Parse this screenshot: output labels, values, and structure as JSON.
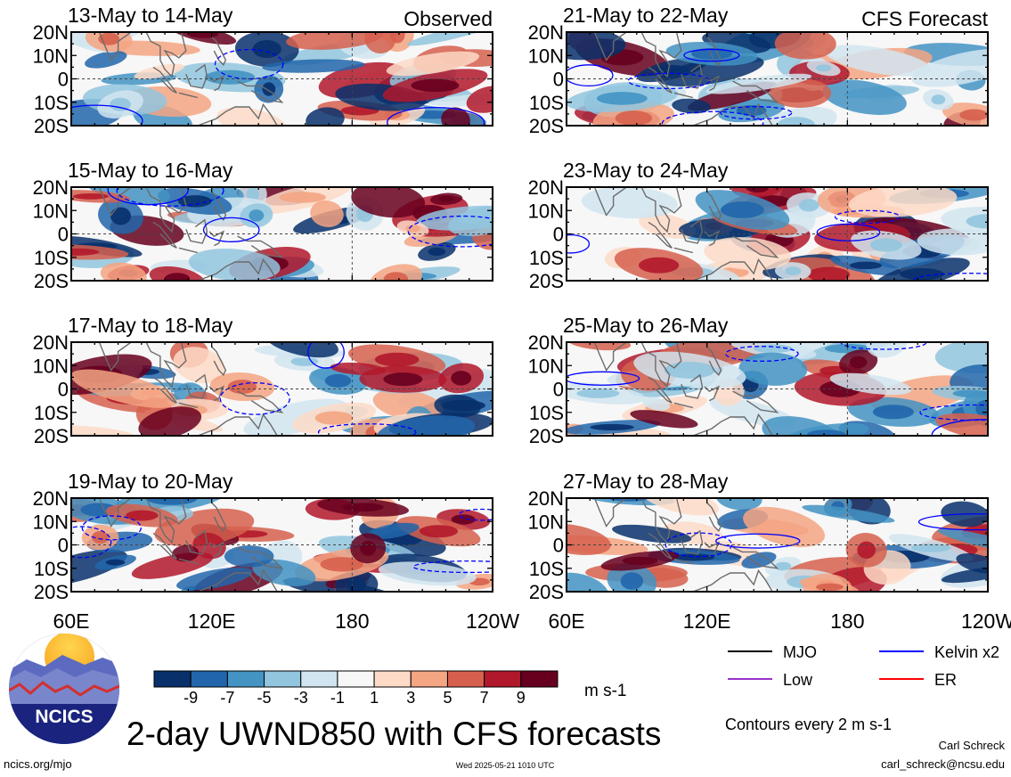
{
  "chart_data": {
    "type": "heatmap",
    "title": "2-day UWND850 with CFS forecasts",
    "units": "m s-1",
    "contour_note": "Contours every 2 m s-1",
    "x_ticks": [
      "60E",
      "120E",
      "180",
      "120W"
    ],
    "y_ticks": [
      "20N",
      "10N",
      "0",
      "10S",
      "20S"
    ],
    "xlim_deg_east": [
      60,
      240
    ],
    "ylim_deg_lat": [
      -20,
      20
    ],
    "colorbar": {
      "labels": [
        "-9",
        "-7",
        "-5",
        "-3",
        "-1",
        "1",
        "3",
        "5",
        "7",
        "9"
      ],
      "colors": [
        "#08306b",
        "#2166ac",
        "#4393c3",
        "#92c5de",
        "#d1e5f0",
        "#f7f7f7",
        "#fddbc7",
        "#f4a582",
        "#d6604d",
        "#b2182b",
        "#67001f"
      ]
    },
    "panels": [
      {
        "label": "13-May to 14-May",
        "tag": "Observed",
        "column": "left"
      },
      {
        "label": "15-May to 16-May",
        "tag": "",
        "column": "left"
      },
      {
        "label": "17-May to 18-May",
        "tag": "",
        "column": "left"
      },
      {
        "label": "19-May to 20-May",
        "tag": "",
        "column": "left"
      },
      {
        "label": "21-May to 22-May",
        "tag": "CFS Forecast",
        "column": "right"
      },
      {
        "label": "23-May to 24-May",
        "tag": "",
        "column": "right"
      },
      {
        "label": "25-May to 26-May",
        "tag": "",
        "column": "right"
      },
      {
        "label": "27-May to 28-May",
        "tag": "",
        "column": "right"
      }
    ],
    "contour_legend": [
      {
        "label": "MJO",
        "color": "#000000"
      },
      {
        "label": "Kelvin x2",
        "color": "#0000ff"
      },
      {
        "label": "Low",
        "color": "#9932cc"
      },
      {
        "label": "ER",
        "color": "#ff0000"
      }
    ]
  },
  "footer": {
    "logo_text": "NCICS",
    "url": "ncics.org/mjo",
    "timestamp": "Wed 2025-05-21 1010 UTC",
    "author": "Carl Schreck",
    "email": "carl_schreck@ncsu.edu"
  }
}
